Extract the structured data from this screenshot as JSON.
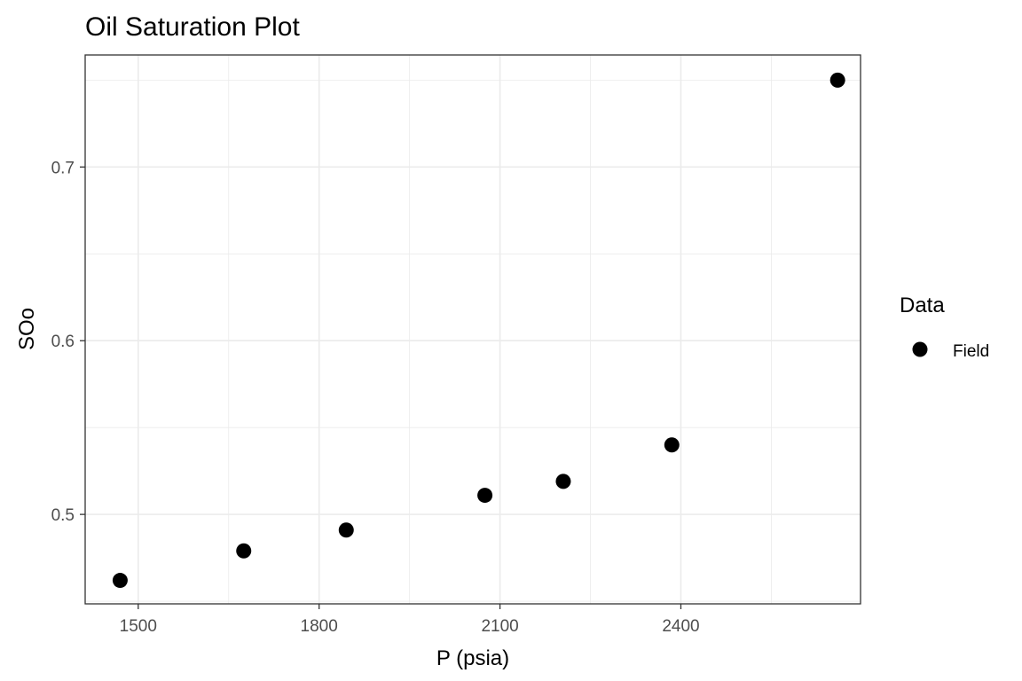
{
  "chart_data": {
    "type": "scatter",
    "title": "Oil Saturation Plot",
    "xlabel": "P (psia)",
    "ylabel": "SOo",
    "xlim": [
      1412,
      2698
    ],
    "ylim": [
      0.4485,
      0.7645
    ],
    "x_ticks": [
      1500,
      1800,
      2100,
      2400
    ],
    "x_tick_labels": [
      "1500",
      "1800",
      "2100",
      "2400"
    ],
    "y_ticks": [
      0.5,
      0.6,
      0.7
    ],
    "y_tick_labels": [
      "0.5",
      "0.6",
      "0.7"
    ],
    "grid": true,
    "legend": {
      "title": "Data",
      "position": "right",
      "entries": [
        "Field"
      ]
    },
    "series": [
      {
        "name": "Field",
        "color": "#000000",
        "marker": "circle",
        "points": [
          {
            "x": 1470,
            "y": 0.462
          },
          {
            "x": 1675,
            "y": 0.479
          },
          {
            "x": 1845,
            "y": 0.491
          },
          {
            "x": 2075,
            "y": 0.511
          },
          {
            "x": 2205,
            "y": 0.519
          },
          {
            "x": 2385,
            "y": 0.54
          },
          {
            "x": 2660,
            "y": 0.75
          }
        ]
      }
    ]
  }
}
